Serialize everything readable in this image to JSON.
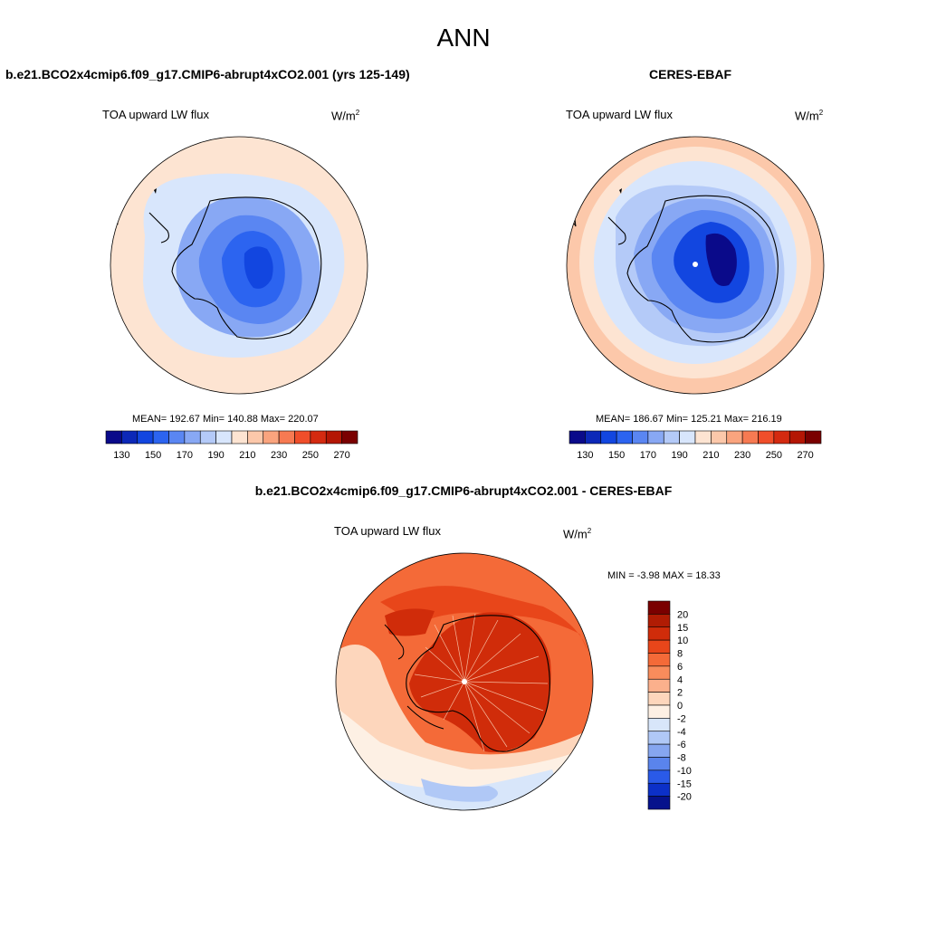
{
  "title": "ANN",
  "panels": [
    {
      "title": "b.e21.BCO2x4cmip6.f09_g17.CMIP6-abrupt4xCO2.001 (yrs 125-149)",
      "variable": "TOA upward LW flux",
      "units_base": "W/m",
      "units_exp": "2",
      "stats": "MEAN= 192.67  Min= 140.88  Max= 220.07"
    },
    {
      "title": "CERES-EBAF",
      "variable": "TOA upward LW flux",
      "units_base": "W/m",
      "units_exp": "2",
      "stats": "MEAN= 186.67  Min= 125.21  Max= 216.19"
    }
  ],
  "colorbar_labels": [
    "130",
    "150",
    "170",
    "190",
    "210",
    "230",
    "250",
    "270"
  ],
  "colorbar_colors": [
    "#0a0a8a",
    "#0c28b8",
    "#1246e0",
    "#2c64f0",
    "#5a86f2",
    "#88a8f4",
    "#b4caf8",
    "#d8e6fc",
    "#fde4d2",
    "#fcc8aa",
    "#faa47e",
    "#f77a52",
    "#f04e2a",
    "#d42a10",
    "#b41604",
    "#7a0000"
  ],
  "difference": {
    "title": "b.e21.BCO2x4cmip6.f09_g17.CMIP6-abrupt4xCO2.001 - CERES-EBAF",
    "variable": "TOA upward LW flux",
    "units_base": "W/m",
    "units_exp": "2",
    "stats": "MIN =  -3.98 MAX =  18.33",
    "colorbar_labels": [
      "20",
      "15",
      "10",
      "8",
      "6",
      "4",
      "2",
      "0",
      "-2",
      "-4",
      "-6",
      "-8",
      "-10",
      "-15",
      "-20"
    ],
    "colorbar_colors": [
      "#7a0000",
      "#b01c04",
      "#d02c0a",
      "#e8461a",
      "#f46a38",
      "#f88c5c",
      "#fbb08c",
      "#fdd6bc",
      "#fdf0e4",
      "#d8e6fa",
      "#b0c8f6",
      "#86a6f0",
      "#5a84ec",
      "#2a5ae8",
      "#0c30c8",
      "#06128c"
    ]
  }
}
